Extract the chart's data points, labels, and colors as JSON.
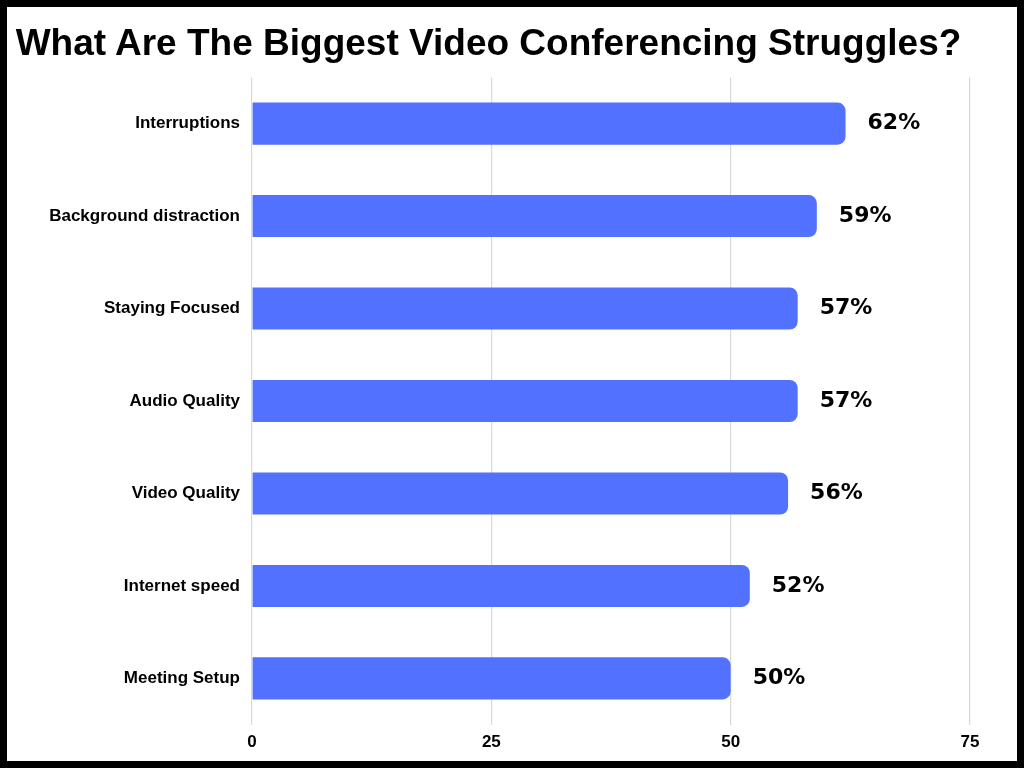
{
  "chart_data": {
    "type": "bar",
    "orientation": "horizontal",
    "title": "What Are The Biggest Video Conferencing Struggles?",
    "categories": [
      "Interruptions",
      "Background distraction",
      "Staying Focused",
      "Audio Quality",
      "Video Quality",
      "Internet speed",
      "Meeting Setup"
    ],
    "values": [
      62,
      59,
      57,
      57,
      56,
      52,
      50
    ],
    "value_labels": [
      "62%",
      "59%",
      "57%",
      "57%",
      "56%",
      "52%",
      "50%"
    ],
    "color": "#5271ff",
    "xlim": [
      0,
      75
    ],
    "xticks": [
      0,
      25,
      50,
      75
    ],
    "grid": "x"
  }
}
